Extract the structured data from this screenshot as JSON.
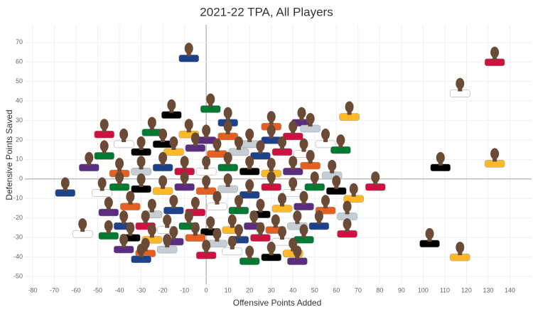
{
  "chart_data": {
    "type": "scatter",
    "title": "2021-22 TPA, All Players",
    "x_label": "Offensive Points Added",
    "y_label": "Defensive Points Saved",
    "x": [
      -8,
      133,
      117,
      2,
      -16,
      66,
      44,
      30,
      48,
      10,
      -47,
      -38,
      -25,
      -20,
      -8,
      0,
      10,
      20,
      30,
      40,
      55,
      -47,
      -30,
      -15,
      -5,
      5,
      15,
      25,
      35,
      45,
      62,
      108,
      133,
      -54,
      -40,
      -30,
      -20,
      -10,
      0,
      10,
      20,
      30,
      40,
      48,
      58,
      -65,
      78,
      -48,
      -40,
      -30,
      -20,
      -10,
      0,
      10,
      20,
      30,
      40,
      50,
      60,
      68,
      -45,
      -35,
      -25,
      -15,
      -5,
      5,
      15,
      25,
      35,
      45,
      55,
      65,
      -38,
      -28,
      -18,
      -8,
      2,
      12,
      22,
      32,
      42,
      52,
      65,
      -57,
      -45,
      -35,
      -25,
      -15,
      -5,
      5,
      15,
      25,
      35,
      45,
      103,
      117,
      -38,
      -28,
      -18,
      -30,
      0,
      12,
      20,
      30,
      40,
      42
    ],
    "values": [
      64,
      62,
      46,
      38,
      35,
      34,
      31,
      29,
      28,
      31,
      25,
      20,
      26,
      20,
      25,
      22,
      24,
      20,
      22,
      24,
      20,
      14,
      16,
      16,
      18,
      15,
      16,
      14,
      16,
      15,
      17,
      8,
      10,
      8,
      5,
      6,
      8,
      6,
      6,
      8,
      6,
      5,
      6,
      9,
      4,
      -5,
      -2,
      -5,
      -2,
      -3,
      -4,
      -2,
      -4,
      -3,
      -6,
      -2,
      -5,
      -2,
      -4,
      -8,
      -15,
      -12,
      -16,
      -14,
      -15,
      -12,
      -14,
      -16,
      -13,
      -12,
      -14,
      -17,
      -22,
      -22,
      -24,
      -22,
      -25,
      -24,
      -22,
      -24,
      -22,
      -22,
      -26,
      -26,
      -27,
      -28,
      -29,
      -30,
      -28,
      -31,
      -29,
      -28,
      -30,
      -29,
      -31,
      -38,
      -34,
      -36,
      -34,
      -39,
      -37,
      -35,
      -40,
      -38,
      -36,
      -40
    ],
    "color": "#6b4a36",
    "xlim": [
      -83.6,
      150
    ],
    "ylim": [
      -54,
      79
    ],
    "xticks": [
      -80,
      -70,
      -60,
      -50,
      -40,
      -30,
      -20,
      -10,
      0,
      10,
      20,
      30,
      40,
      50,
      60,
      70,
      80,
      90,
      100,
      110,
      120,
      130,
      140
    ],
    "yticks": [
      -50,
      -40,
      -30,
      -20,
      -10,
      0,
      10,
      20,
      30,
      40,
      50,
      60,
      70
    ],
    "grid": true
  }
}
